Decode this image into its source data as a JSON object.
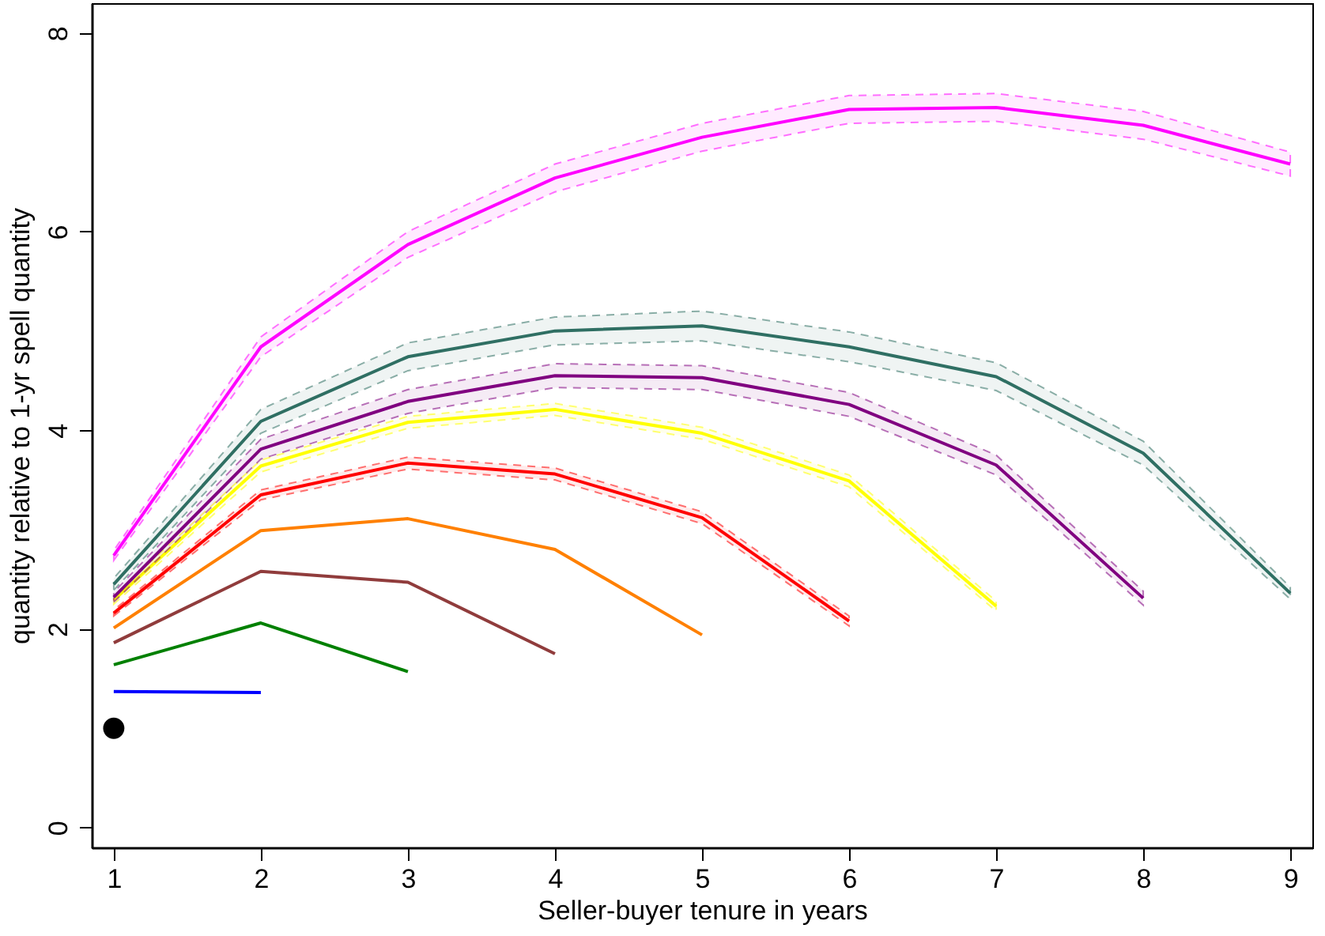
{
  "chart_data": {
    "type": "line",
    "xlabel": "Seller-buyer tenure in years",
    "ylabel": "quantity relative to 1-yr spell quantity",
    "xlim": [
      0.85,
      9.15
    ],
    "ylim": [
      -0.2,
      8.3
    ],
    "xticks": [
      1,
      2,
      3,
      4,
      5,
      6,
      7,
      8,
      9
    ],
    "yticks": [
      0,
      2,
      4,
      6,
      8
    ],
    "grid": false,
    "series": [
      {
        "type": "scatter",
        "marker": "circle",
        "color": "#000000",
        "x": [
          1
        ],
        "values": [
          1
        ]
      },
      {
        "color": "#0000ff",
        "x": [
          1,
          2
        ],
        "values": [
          1.37,
          1.36
        ]
      },
      {
        "color": "#008000",
        "x": [
          1,
          2,
          3
        ],
        "values": [
          1.64,
          2.06,
          1.57
        ]
      },
      {
        "color": "#903c3c",
        "x": [
          1,
          2,
          3,
          4
        ],
        "values": [
          1.86,
          2.58,
          2.47,
          1.75
        ]
      },
      {
        "color": "#ff8000",
        "x": [
          1,
          2,
          3,
          4,
          5
        ],
        "values": [
          2.01,
          2.99,
          3.11,
          2.8,
          1.94
        ]
      },
      {
        "color": "#ff0000",
        "x": [
          1,
          2,
          3,
          4,
          5,
          6
        ],
        "values": [
          2.16,
          3.35,
          3.67,
          3.56,
          3.12,
          2.08
        ],
        "lower": [
          2.13,
          3.3,
          3.61,
          3.5,
          3.06,
          2.03
        ],
        "upper": [
          2.19,
          3.4,
          3.73,
          3.62,
          3.18,
          2.13
        ]
      },
      {
        "color": "#ffff00",
        "x": [
          1,
          2,
          3,
          4,
          5,
          6,
          7
        ],
        "values": [
          2.29,
          3.64,
          4.08,
          4.21,
          3.97,
          3.49,
          2.23
        ],
        "lower": [
          2.25,
          3.58,
          4.02,
          4.15,
          3.91,
          3.43,
          2.18
        ],
        "upper": [
          2.33,
          3.7,
          4.14,
          4.27,
          4.03,
          3.55,
          2.28
        ]
      },
      {
        "color": "#800080",
        "x": [
          1,
          2,
          3,
          4,
          5,
          6,
          7,
          8
        ],
        "values": [
          2.32,
          3.81,
          4.29,
          4.55,
          4.53,
          4.26,
          3.65,
          2.31
        ],
        "lower": [
          2.27,
          3.71,
          4.17,
          4.43,
          4.41,
          4.14,
          3.55,
          2.24
        ],
        "upper": [
          2.37,
          3.91,
          4.41,
          4.67,
          4.65,
          4.38,
          3.75,
          2.38
        ]
      },
      {
        "color": "#2f6f63",
        "x": [
          1,
          2,
          3,
          4,
          5,
          6,
          7,
          8,
          9
        ],
        "values": [
          2.45,
          4.09,
          4.74,
          5.0,
          5.05,
          4.84,
          4.54,
          3.77,
          2.36
        ],
        "lower": [
          2.39,
          3.97,
          4.6,
          4.86,
          4.9,
          4.69,
          4.4,
          3.65,
          2.3
        ],
        "upper": [
          2.51,
          4.21,
          4.88,
          5.14,
          5.2,
          4.99,
          4.68,
          3.89,
          2.42
        ]
      },
      {
        "color": "#ff00ff",
        "x": [
          1,
          2,
          3,
          4,
          5,
          6,
          7,
          8,
          9
        ],
        "values": [
          2.74,
          4.84,
          5.87,
          6.54,
          6.95,
          7.23,
          7.25,
          7.07,
          6.68
        ],
        "lower": [
          2.69,
          4.74,
          5.74,
          6.4,
          6.81,
          7.09,
          7.11,
          6.93,
          6.56
        ],
        "upper": [
          2.79,
          4.94,
          6.0,
          6.68,
          7.09,
          7.37,
          7.39,
          7.21,
          6.8
        ]
      }
    ]
  }
}
